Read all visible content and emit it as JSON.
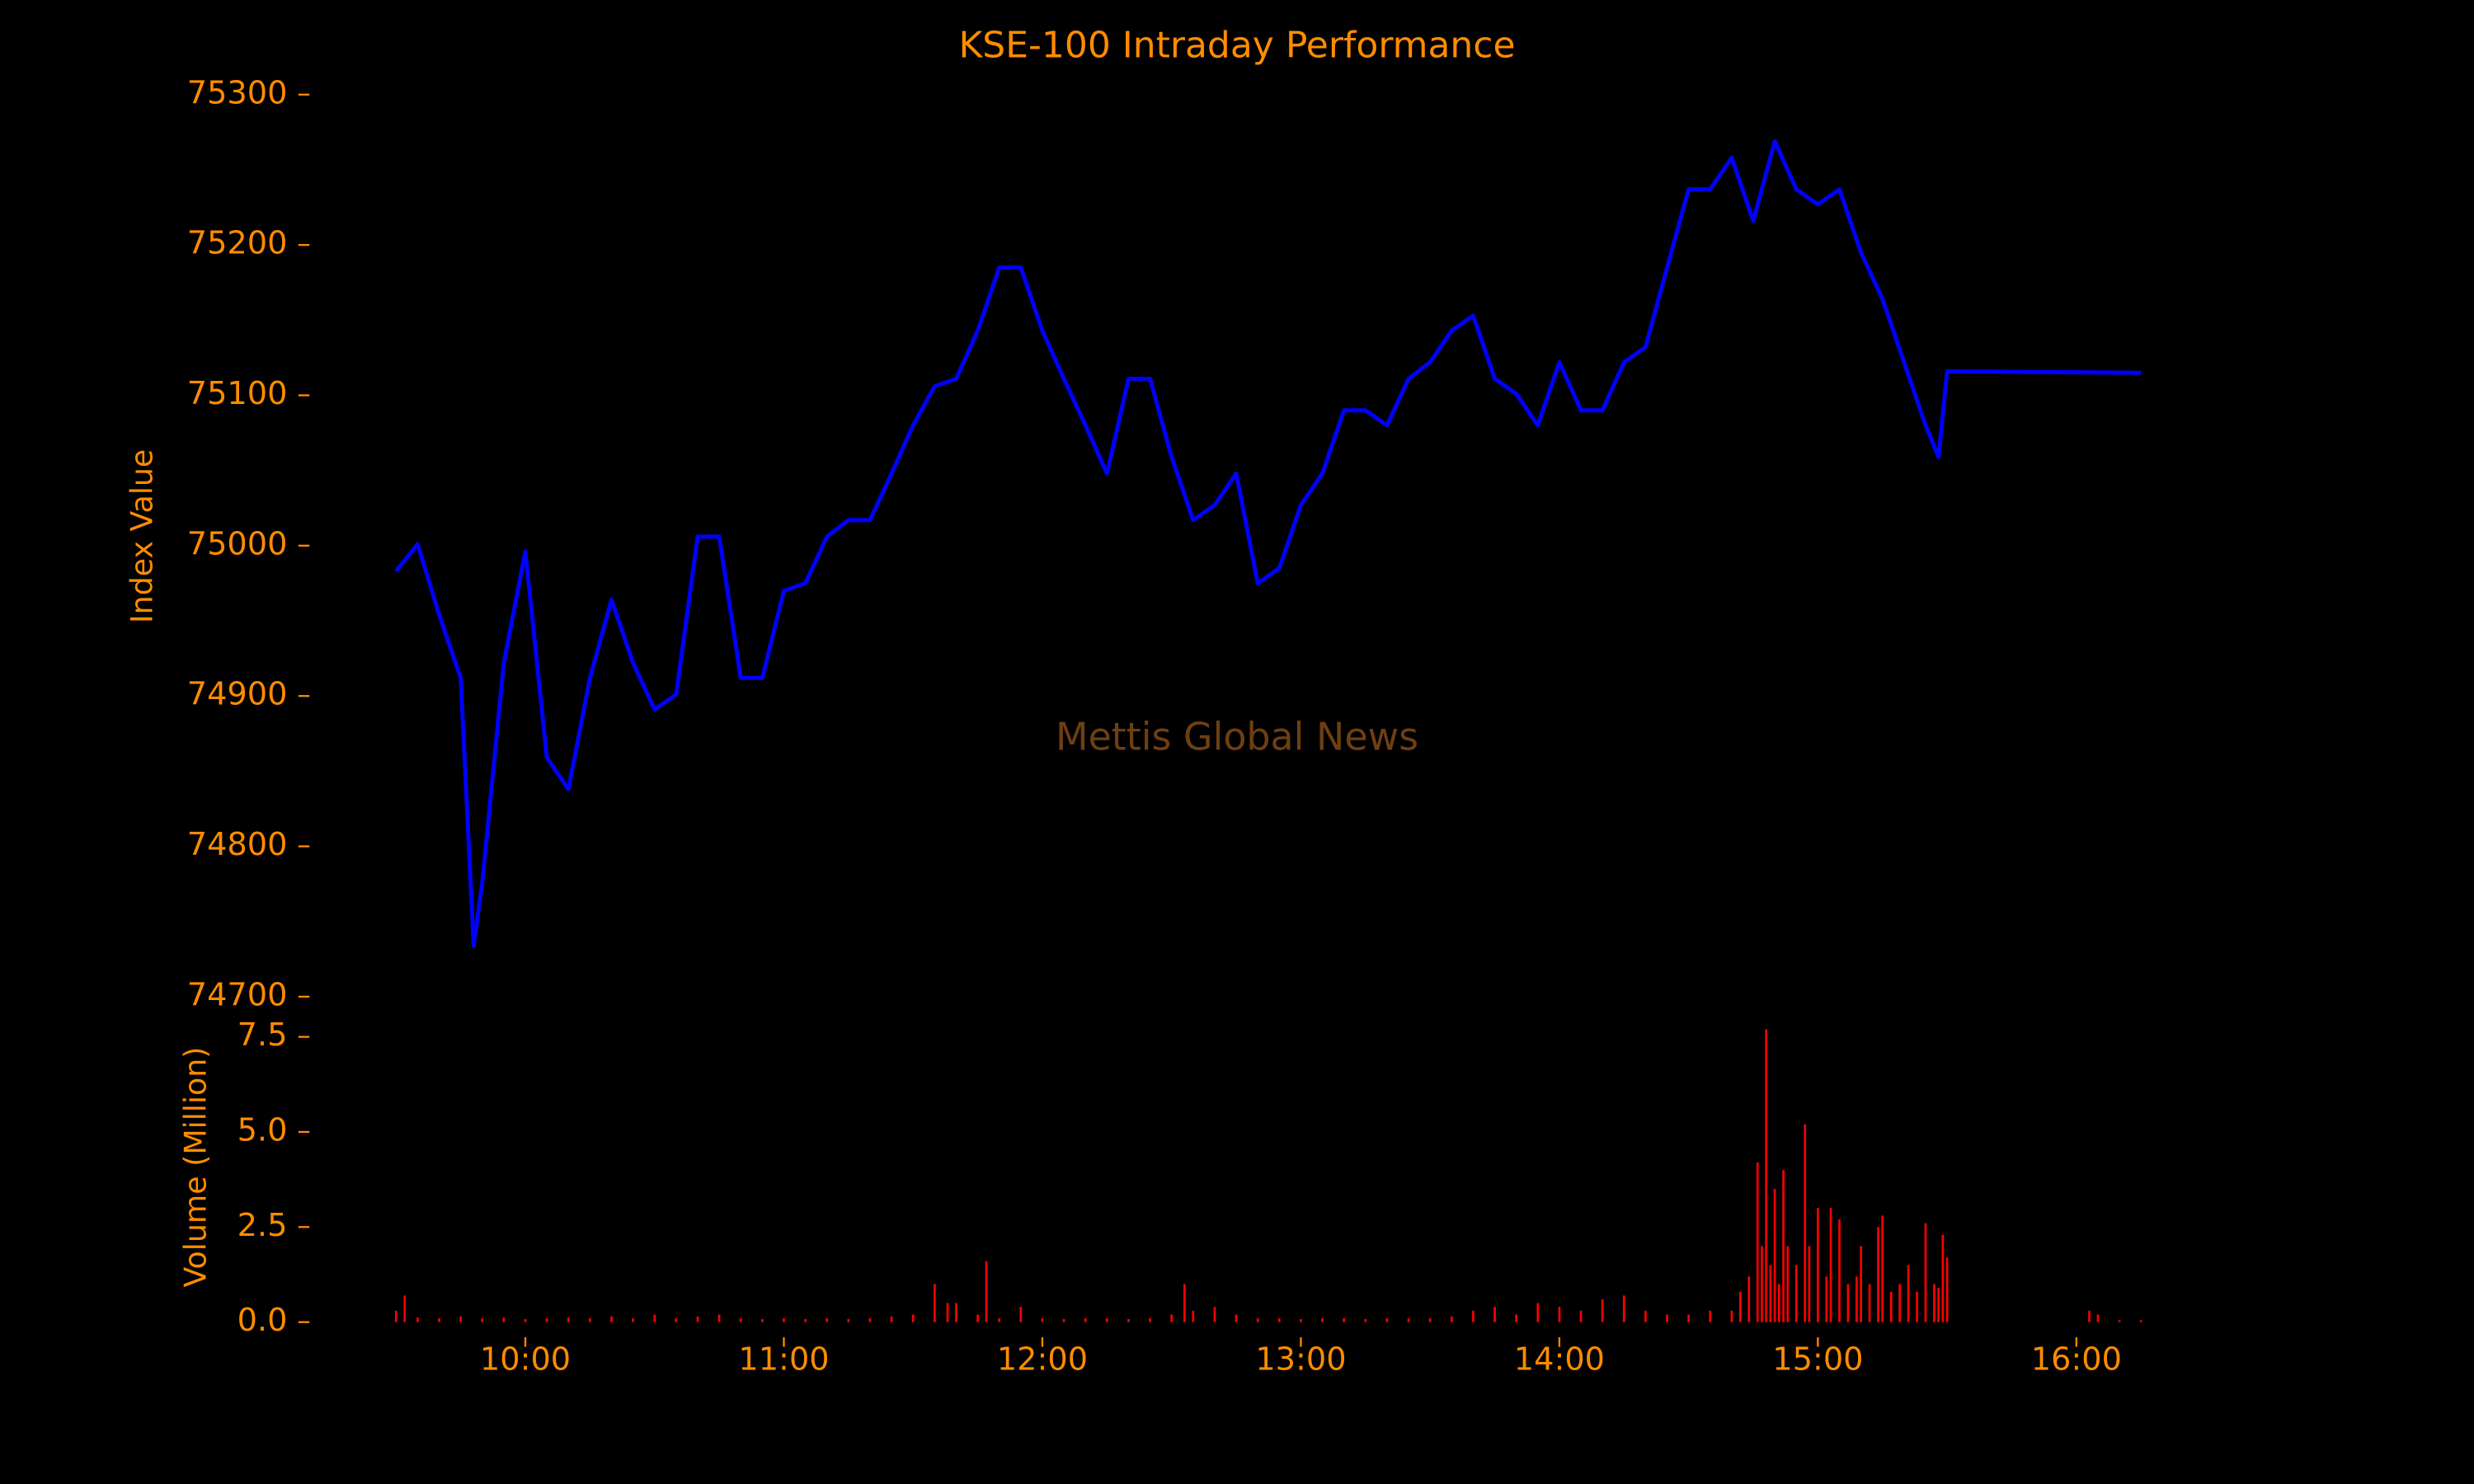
{
  "chart_data": [
    {
      "type": "line",
      "title": "KSE-100 Intraday Performance",
      "ylabel": "Index Value",
      "annotation": "Mettis Global News",
      "color": "#0000ff",
      "xlim": [
        "09:10",
        "16:35"
      ],
      "ylim": [
        74700,
        75300
      ],
      "yticks": [
        74700,
        74800,
        74900,
        75000,
        75100,
        75200,
        75300
      ],
      "x": [
        "09:30",
        "09:35",
        "09:40",
        "09:45",
        "09:48",
        "09:50",
        "09:55",
        "10:00",
        "10:05",
        "10:10",
        "10:15",
        "10:20",
        "10:25",
        "10:30",
        "10:35",
        "10:40",
        "10:45",
        "10:50",
        "10:55",
        "11:00",
        "11:05",
        "11:10",
        "11:15",
        "11:20",
        "11:25",
        "11:30",
        "11:35",
        "11:40",
        "11:45",
        "11:50",
        "11:55",
        "12:00",
        "12:05",
        "12:10",
        "12:15",
        "12:20",
        "12:25",
        "12:30",
        "12:35",
        "12:40",
        "12:45",
        "12:50",
        "12:55",
        "13:00",
        "13:05",
        "13:10",
        "13:15",
        "13:20",
        "13:25",
        "13:30",
        "13:35",
        "13:40",
        "13:45",
        "13:50",
        "13:55",
        "14:00",
        "14:05",
        "14:10",
        "14:15",
        "14:20",
        "14:25",
        "14:30",
        "14:35",
        "14:40",
        "14:45",
        "14:50",
        "14:55",
        "15:00",
        "15:05",
        "15:10",
        "15:15",
        "15:20",
        "15:25",
        "15:28",
        "15:30",
        "16:15"
      ],
      "values": [
        74983,
        75001,
        74954,
        74912,
        74734,
        74776,
        74922,
        74996,
        74859,
        74838,
        74912,
        74964,
        74922,
        74891,
        74901,
        75006,
        75006,
        74912,
        74912,
        74970,
        74975,
        75006,
        75017,
        75017,
        75048,
        75080,
        75106,
        75111,
        75143,
        75185,
        75185,
        75143,
        75111,
        75080,
        75048,
        75111,
        75111,
        75059,
        75017,
        75027,
        75048,
        74975,
        74985,
        75027,
        75048,
        75090,
        75090,
        75080,
        75111,
        75122,
        75143,
        75153,
        75111,
        75101,
        75080,
        75122,
        75090,
        75090,
        75122,
        75132,
        75185,
        75237,
        75237,
        75258,
        75216,
        75269,
        75237,
        75227,
        75237,
        75195,
        75164,
        75122,
        75080,
        75059,
        75116,
        75115
      ]
    },
    {
      "type": "bar",
      "ylabel": "Volume (Million)",
      "color": "#ff0000",
      "xlim": [
        "09:10",
        "16:35"
      ],
      "ylim": [
        -0.4,
        8.1
      ],
      "yticks": [
        {
          "value": 0,
          "label": "0.0"
        },
        2.5,
        {
          "value": 5,
          "label": "5.0"
        },
        7.5
      ],
      "xticks": [
        "10:00",
        "11:00",
        "12:00",
        "13:00",
        "14:00",
        "15:00",
        "16:00"
      ],
      "x": [
        "09:30",
        "09:32",
        "09:35",
        "09:40",
        "09:45",
        "09:50",
        "09:55",
        "10:00",
        "10:05",
        "10:10",
        "10:15",
        "10:20",
        "10:25",
        "10:30",
        "10:35",
        "10:40",
        "10:45",
        "10:50",
        "10:55",
        "11:00",
        "11:05",
        "11:10",
        "11:15",
        "11:20",
        "11:25",
        "11:30",
        "11:35",
        "11:38",
        "11:40",
        "11:45",
        "11:47",
        "11:50",
        "11:55",
        "12:00",
        "12:05",
        "12:10",
        "12:15",
        "12:20",
        "12:25",
        "12:30",
        "12:33",
        "12:35",
        "12:40",
        "12:45",
        "12:50",
        "12:55",
        "13:00",
        "13:05",
        "13:10",
        "13:15",
        "13:20",
        "13:25",
        "13:30",
        "13:35",
        "13:40",
        "13:45",
        "13:50",
        "13:55",
        "14:00",
        "14:05",
        "14:10",
        "14:15",
        "14:20",
        "14:25",
        "14:30",
        "14:35",
        "14:40",
        "14:42",
        "14:44",
        "14:46",
        "14:47",
        "14:48",
        "14:49",
        "14:50",
        "14:51",
        "14:52",
        "14:53",
        "14:55",
        "14:57",
        "14:58",
        "15:00",
        "15:02",
        "15:03",
        "15:05",
        "15:07",
        "15:09",
        "15:10",
        "15:12",
        "15:14",
        "15:15",
        "15:17",
        "15:19",
        "15:21",
        "15:23",
        "15:25",
        "15:27",
        "15:28",
        "15:29",
        "15:30",
        "16:03",
        "16:05",
        "16:10",
        "16:15"
      ],
      "values": [
        0.3,
        0.7,
        0.12,
        0.1,
        0.15,
        0.1,
        0.12,
        0.08,
        0.1,
        0.12,
        0.1,
        0.15,
        0.1,
        0.2,
        0.1,
        0.15,
        0.2,
        0.1,
        0.08,
        0.1,
        0.08,
        0.1,
        0.08,
        0.1,
        0.15,
        0.2,
        1.0,
        0.5,
        0.5,
        0.2,
        1.6,
        0.1,
        0.4,
        0.1,
        0.08,
        0.1,
        0.1,
        0.08,
        0.1,
        0.2,
        1.0,
        0.3,
        0.4,
        0.2,
        0.1,
        0.1,
        0.08,
        0.1,
        0.1,
        0.08,
        0.1,
        0.1,
        0.1,
        0.15,
        0.3,
        0.4,
        0.2,
        0.5,
        0.4,
        0.3,
        0.6,
        0.7,
        0.3,
        0.2,
        0.2,
        0.3,
        0.3,
        0.8,
        1.2,
        4.2,
        2.0,
        7.7,
        1.5,
        3.5,
        1.0,
        4.0,
        2.0,
        1.5,
        5.2,
        2.0,
        3.0,
        1.2,
        3.0,
        2.7,
        1.0,
        1.2,
        2.0,
        1.0,
        2.5,
        2.8,
        0.8,
        1.0,
        1.5,
        0.8,
        2.6,
        1.0,
        0.9,
        2.3,
        1.7,
        0.3,
        0.2,
        0.05,
        0.05
      ]
    }
  ]
}
